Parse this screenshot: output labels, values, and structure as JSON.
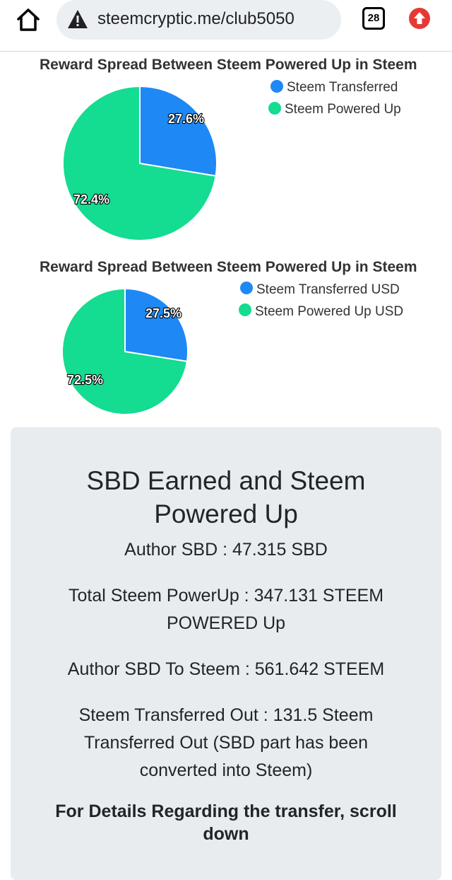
{
  "browser": {
    "url": "steemcryptic.me/club5050",
    "tab_count": "28",
    "home_icon": "home-icon",
    "warning_icon": "warning-triangle-icon",
    "update_icon": "update-arrow-icon"
  },
  "charts": {
    "chart1": {
      "title": "Reward Spread Between Steem Powered Up in Steem",
      "legend": [
        "Steem Transferred",
        "Steem Powered Up"
      ],
      "labels": [
        "27.6%",
        "72.4%"
      ]
    },
    "chart2": {
      "title": "Reward Spread Between Steem Powered Up in Steem",
      "legend": [
        "Steem Transferred USD",
        "Steem Powered Up USD"
      ],
      "labels": [
        "27.5%",
        "72.5%"
      ]
    }
  },
  "chart_data": [
    {
      "type": "pie",
      "title": "Reward Spread Between Steem Powered Up in Steem",
      "categories": [
        "Steem Transferred",
        "Steem Powered Up"
      ],
      "values": [
        27.6,
        72.4
      ],
      "colors": [
        "#1e88f5",
        "#14dc90"
      ],
      "legend": "top-right"
    },
    {
      "type": "pie",
      "title": "Reward Spread Between Steem Powered Up in Steem",
      "categories": [
        "Steem Transferred USD",
        "Steem Powered Up USD"
      ],
      "values": [
        27.5,
        72.5
      ],
      "colors": [
        "#1e88f5",
        "#14dc90"
      ],
      "legend": "top-right"
    }
  ],
  "card": {
    "title": "SBD Earned and Steem Powered Up",
    "author_sbd": "Author SBD : 47.315 SBD",
    "total_powerup": "Total Steem PowerUp : 347.131 STEEM POWERED Up",
    "sbd_to_steem": "Author SBD To Steem : 561.642 STEEM",
    "transferred_out": "Steem Transferred Out : 131.5 Steem Transferred Out (SBD part has been converted into Steem)",
    "details": "For Details Regarding the transfer, scroll down"
  },
  "colors": {
    "blue": "#1e88f5",
    "green": "#14dc90",
    "update_red": "#e53935",
    "card_bg": "#e9ecef"
  }
}
